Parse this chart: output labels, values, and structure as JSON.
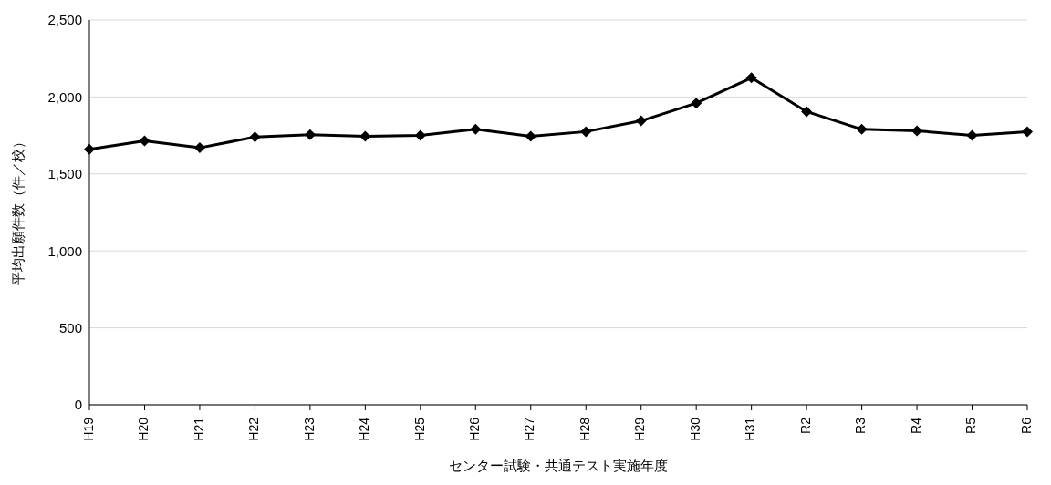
{
  "chart_data": {
    "type": "line",
    "xlabel": "センター試験・共通テスト実施年度",
    "ylabel": "平均出願件数（件／校）",
    "categories": [
      "H19",
      "H20",
      "H21",
      "H22",
      "H23",
      "H24",
      "H25",
      "H26",
      "H27",
      "H28",
      "H29",
      "H30",
      "H31",
      "R2",
      "R3",
      "R4",
      "R5",
      "R6"
    ],
    "series": [
      {
        "color": "#000000",
        "values": [
          1660,
          1715,
          1670,
          1740,
          1755,
          1745,
          1750,
          1790,
          1745,
          1775,
          1845,
          1960,
          2125,
          1905,
          1790,
          1780,
          1750,
          1775
        ]
      }
    ],
    "ylim": [
      0,
      2500
    ],
    "yticks": [
      {
        "value": 0,
        "label": "0"
      },
      {
        "value": 500,
        "label": "500"
      },
      {
        "value": 1000,
        "label": "1,000"
      },
      {
        "value": 1500,
        "label": "1,500"
      },
      {
        "value": 2000,
        "label": "2,000"
      },
      {
        "value": 2500,
        "label": "2,500"
      }
    ],
    "grid": "y",
    "marker": "diamond",
    "line_style": "solid"
  }
}
